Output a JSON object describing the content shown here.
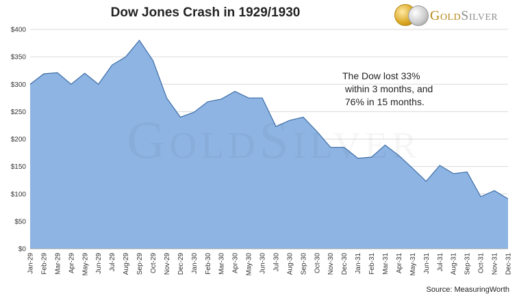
{
  "title": "Dow Jones Crash in 1929/1930",
  "logo": {
    "gold": "Gold",
    "silver": "Silver"
  },
  "annotation": "The Dow lost 33%\n within 3 months, and\n 76% in 15 months.",
  "source": "Source: MeasuringWorth",
  "watermark": "GoldSilver",
  "colors": {
    "fill": "#8db4e2",
    "stroke": "#3e6ea7",
    "grid": "#d9d9d9",
    "axis": "#333333"
  },
  "chart_data": {
    "type": "area",
    "title": "Dow Jones Crash in 1929/1930",
    "xlabel": "",
    "ylabel": "",
    "ylim": [
      0,
      400
    ],
    "yticks": [
      "$0",
      "$50",
      "$100",
      "$150",
      "$200",
      "$250",
      "$300",
      "$350",
      "$400"
    ],
    "grid": true,
    "categories": [
      "Jan-29",
      "Feb-29",
      "Mar-29",
      "Apr-29",
      "May-29",
      "Jun-29",
      "Jul-29",
      "Aug-29",
      "Sep-29",
      "Oct-29",
      "Nov-29",
      "Dec-29",
      "Jan-30",
      "Feb-30",
      "Mar-30",
      "Apr-30",
      "May-30",
      "Jun-30",
      "Jul-30",
      "Aug-30",
      "Sep-30",
      "Oct-30",
      "Nov-30",
      "Dec-30",
      "Jan-31",
      "Feb-31",
      "Mar-31",
      "Apr-31",
      "May-31",
      "Jun-31",
      "Jul-31",
      "Aug-31",
      "Sep-31",
      "Oct-31",
      "Nov-31",
      "Dec-31"
    ],
    "values": [
      300,
      319,
      321,
      300,
      320,
      300,
      335,
      350,
      380,
      343,
      275,
      240,
      249,
      268,
      273,
      287,
      275,
      275,
      223,
      234,
      240,
      214,
      185,
      185,
      165,
      167,
      189,
      170,
      147,
      123,
      152,
      137,
      140,
      95,
      106,
      91
    ]
  }
}
